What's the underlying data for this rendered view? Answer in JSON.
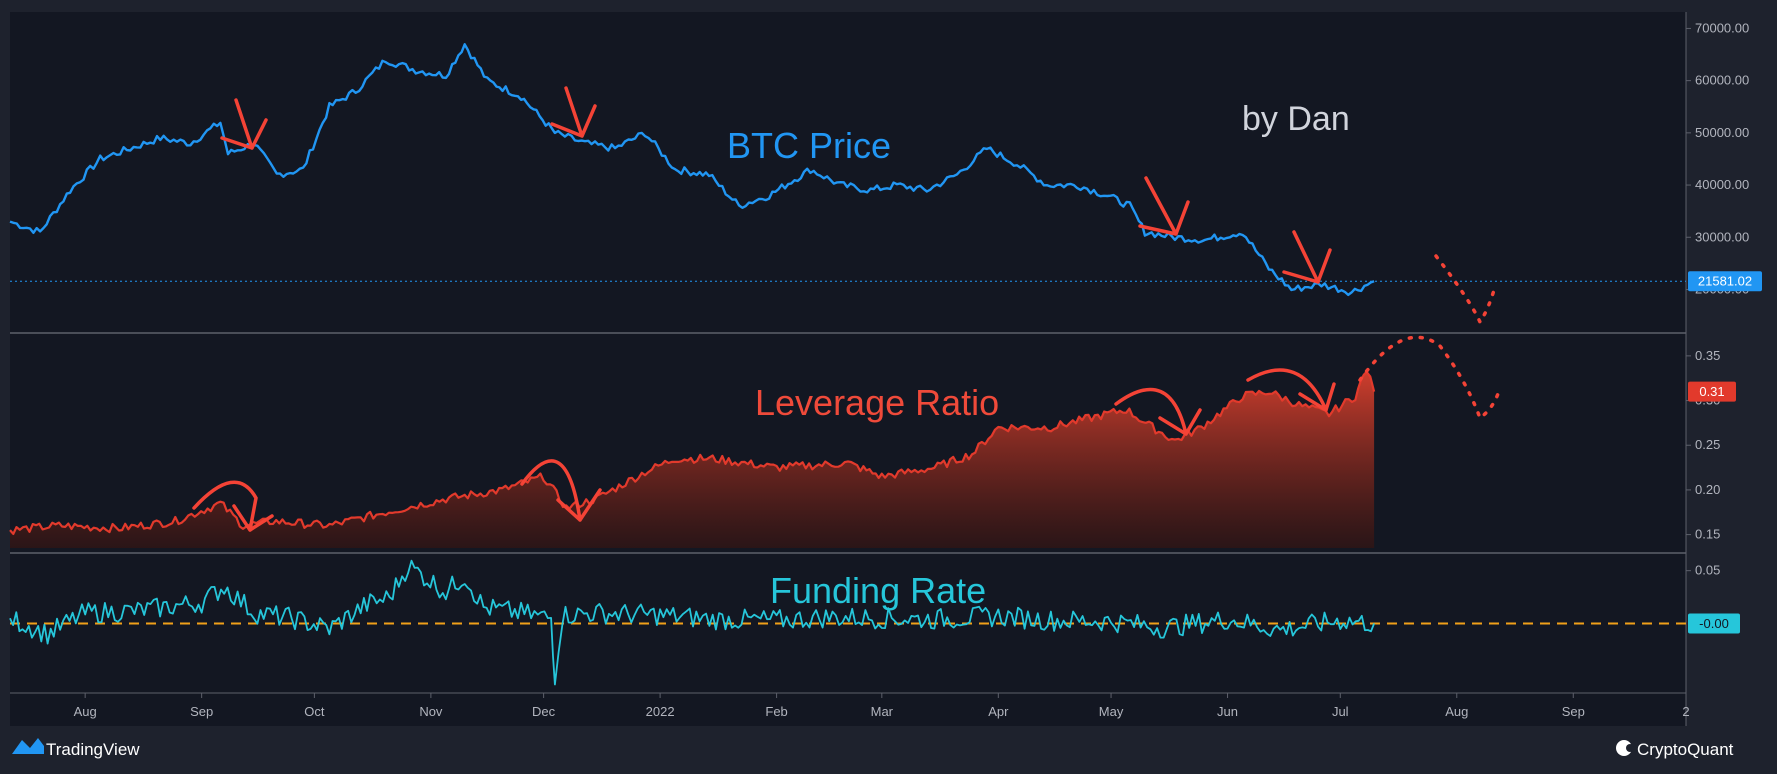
{
  "watermark": {
    "author": "by Dan"
  },
  "footer": {
    "left_brand": "TradingView",
    "right_brand": "CryptoQuant"
  },
  "colors": {
    "background": "#131722",
    "frame": "#1e222d",
    "btc_line": "#2196f3",
    "leverage_line": "#e23a2c",
    "funding_line": "#26c6da",
    "zero_line": "#f0a019",
    "arrow": "#f44336",
    "grid": "#363a45",
    "axis_text": "#b2b5be"
  },
  "x_axis": {
    "start": "2021-07-12",
    "end": "2022-10-01",
    "ticks": [
      {
        "date": "2021-08-01",
        "label": "Aug"
      },
      {
        "date": "2021-09-01",
        "label": "Sep"
      },
      {
        "date": "2021-10-01",
        "label": "Oct"
      },
      {
        "date": "2021-11-01",
        "label": "Nov"
      },
      {
        "date": "2021-12-01",
        "label": "Dec"
      },
      {
        "date": "2022-01-01",
        "label": "2022"
      },
      {
        "date": "2022-02-01",
        "label": "Feb"
      },
      {
        "date": "2022-03-01",
        "label": "Mar"
      },
      {
        "date": "2022-04-01",
        "label": "Apr"
      },
      {
        "date": "2022-05-01",
        "label": "May"
      },
      {
        "date": "2022-06-01",
        "label": "Jun"
      },
      {
        "date": "2022-07-01",
        "label": "Jul"
      },
      {
        "date": "2022-08-01",
        "label": "Aug"
      },
      {
        "date": "2022-09-01",
        "label": "Sep"
      },
      {
        "date": "2022-10-01",
        "label": "2"
      }
    ]
  },
  "chart_data": [
    {
      "type": "line",
      "title": "BTC Price",
      "ylim": [
        13000,
        72000
      ],
      "y_ticks": [
        "70000.00",
        "60000.00",
        "50000.00",
        "40000.00",
        "30000.00",
        "20000.00"
      ],
      "y_tick_values": [
        70000,
        60000,
        50000,
        40000,
        30000,
        20000
      ],
      "last_value": 21581.02,
      "last_value_label": "21581.02",
      "x": [
        "2021-07-12",
        "2021-07-20",
        "2021-07-28",
        "2021-08-05",
        "2021-08-13",
        "2021-08-21",
        "2021-08-29",
        "2021-09-06",
        "2021-09-08",
        "2021-09-15",
        "2021-09-21",
        "2021-09-28",
        "2021-10-05",
        "2021-10-12",
        "2021-10-20",
        "2021-10-28",
        "2021-11-05",
        "2021-11-10",
        "2021-11-16",
        "2021-11-25",
        "2021-12-04",
        "2021-12-12",
        "2021-12-20",
        "2021-12-28",
        "2022-01-05",
        "2022-01-14",
        "2022-01-22",
        "2022-01-30",
        "2022-02-10",
        "2022-02-18",
        "2022-02-26",
        "2022-03-05",
        "2022-03-13",
        "2022-03-21",
        "2022-03-29",
        "2022-04-06",
        "2022-04-14",
        "2022-04-22",
        "2022-04-30",
        "2022-05-06",
        "2022-05-10",
        "2022-05-18",
        "2022-05-26",
        "2022-06-05",
        "2022-06-12",
        "2022-06-18",
        "2022-06-26",
        "2022-07-04",
        "2022-07-10"
      ],
      "values": [
        33000,
        31000,
        39000,
        45000,
        47000,
        49000,
        48000,
        52000,
        46000,
        48000,
        42000,
        43000,
        55000,
        58000,
        64000,
        62000,
        61000,
        67000,
        60000,
        57000,
        50000,
        48000,
        47000,
        50000,
        43000,
        42000,
        36000,
        38000,
        43000,
        40000,
        39000,
        40000,
        39000,
        42000,
        47000,
        44000,
        40000,
        40000,
        38000,
        36000,
        31000,
        30000,
        29500,
        31000,
        24000,
        20000,
        21000,
        19500,
        21581
      ]
    },
    {
      "type": "area",
      "title": "Leverage Ratio",
      "ylim": [
        0.135,
        0.37
      ],
      "y_ticks": [
        "0.35",
        "0.30",
        "0.25",
        "0.20",
        "0.15"
      ],
      "y_tick_values": [
        0.35,
        0.3,
        0.25,
        0.2,
        0.15
      ],
      "last_value": 0.31,
      "last_value_label": "0.31",
      "x": [
        "2021-07-12",
        "2021-07-25",
        "2021-08-10",
        "2021-08-25",
        "2021-09-06",
        "2021-09-12",
        "2021-09-20",
        "2021-10-05",
        "2021-10-20",
        "2021-11-05",
        "2021-11-20",
        "2021-12-01",
        "2021-12-07",
        "2021-12-15",
        "2021-12-28",
        "2022-01-05",
        "2022-01-15",
        "2022-02-01",
        "2022-02-20",
        "2022-03-01",
        "2022-03-15",
        "2022-03-25",
        "2022-04-01",
        "2022-04-15",
        "2022-04-25",
        "2022-05-05",
        "2022-05-12",
        "2022-05-18",
        "2022-05-25",
        "2022-06-05",
        "2022-06-12",
        "2022-06-20",
        "2022-06-28",
        "2022-07-05",
        "2022-07-08",
        "2022-07-10"
      ],
      "values": [
        0.155,
        0.16,
        0.157,
        0.165,
        0.185,
        0.16,
        0.165,
        0.16,
        0.175,
        0.19,
        0.2,
        0.215,
        0.18,
        0.19,
        0.22,
        0.235,
        0.235,
        0.225,
        0.23,
        0.215,
        0.225,
        0.24,
        0.27,
        0.27,
        0.28,
        0.29,
        0.27,
        0.255,
        0.27,
        0.305,
        0.31,
        0.295,
        0.285,
        0.305,
        0.335,
        0.31
      ]
    },
    {
      "type": "line",
      "title": "Funding Rate",
      "ylim": [
        -0.063,
        0.062
      ],
      "y_ticks": [
        "0.05"
      ],
      "y_tick_values": [
        0.05
      ],
      "last_value": -0.0,
      "last_value_label": "-0.00",
      "x": [
        "2021-07-12",
        "2021-07-22",
        "2021-08-01",
        "2021-08-15",
        "2021-09-01",
        "2021-09-07",
        "2021-09-15",
        "2021-09-25",
        "2021-10-05",
        "2021-10-15",
        "2021-10-21",
        "2021-10-26",
        "2021-11-05",
        "2021-11-10",
        "2021-11-15",
        "2021-11-25",
        "2021-12-03",
        "2021-12-04",
        "2021-12-06",
        "2021-12-15",
        "2022-01-01",
        "2022-01-15",
        "2022-02-01",
        "2022-02-15",
        "2022-03-01",
        "2022-03-15",
        "2022-04-01",
        "2022-04-15",
        "2022-05-01",
        "2022-05-15",
        "2022-06-01",
        "2022-06-15",
        "2022-07-01",
        "2022-07-10"
      ],
      "values": [
        0.005,
        -0.01,
        0.01,
        0.012,
        0.02,
        0.035,
        0.01,
        0.005,
        -0.005,
        0.018,
        0.025,
        0.055,
        0.03,
        0.045,
        0.015,
        0.01,
        0.005,
        -0.05,
        0.008,
        0.01,
        0.008,
        0.004,
        0.003,
        0.006,
        0.005,
        0.004,
        0.007,
        0.003,
        0.002,
        -0.004,
        0.004,
        -0.006,
        0.003,
        0.0
      ]
    }
  ]
}
